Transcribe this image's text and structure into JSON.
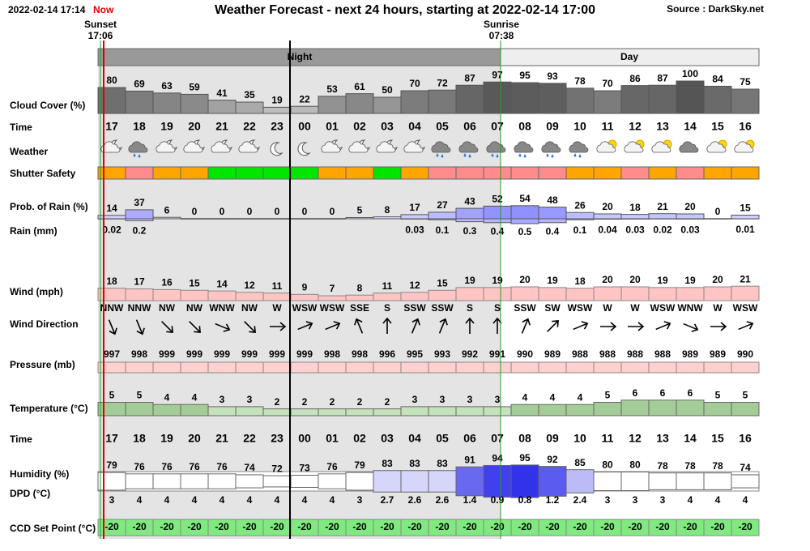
{
  "header": {
    "timestamp": "2022-02-14 17:14",
    "now": "Now",
    "title": "Weather Forecast - next 24 hours, starting at 2022-02-14 17:00",
    "source": "Source : DarkSky.net",
    "sunset": {
      "label": "Sunset",
      "time": "17:06"
    },
    "sunrise": {
      "label": "Sunrise",
      "time": "07:38"
    },
    "night": "Night",
    "day": "Day"
  },
  "hours": [
    "17",
    "18",
    "19",
    "20",
    "21",
    "22",
    "23",
    "00",
    "01",
    "02",
    "03",
    "04",
    "05",
    "06",
    "07",
    "08",
    "09",
    "10",
    "11",
    "12",
    "13",
    "14",
    "15",
    "16"
  ],
  "cloud_cover": {
    "label": "Cloud Cover (%)",
    "values": [
      80,
      69,
      63,
      59,
      41,
      35,
      19,
      22,
      53,
      61,
      50,
      70,
      72,
      87,
      97,
      95,
      93,
      78,
      70,
      86,
      87,
      100,
      84,
      75
    ]
  },
  "time": {
    "label": "Time"
  },
  "weather": {
    "label": "Weather"
  },
  "shutter_safety": {
    "label": "Shutter Safety",
    "colors": [
      "#ffa500",
      "#ff8c8c",
      "#ffa500",
      "#ffa500",
      "#00e600",
      "#00e600",
      "#00e600",
      "#00e600",
      "#ffa500",
      "#ffa500",
      "#00e600",
      "#ffa500",
      "#ff8c8c",
      "#ff8c8c",
      "#ff8c8c",
      "#ff8c8c",
      "#ff8c8c",
      "#ffa500",
      "#ffa500",
      "#ff8c8c",
      "#ffa500",
      "#ff8c8c",
      "#ffa500",
      "#ffa500"
    ]
  },
  "rain_probability": {
    "label": "Prob. of Rain (%)",
    "values": [
      14,
      37,
      6,
      0,
      0,
      0,
      0,
      0,
      0,
      5,
      8,
      17,
      27,
      43,
      52,
      54,
      48,
      26,
      20,
      18,
      21,
      20,
      0,
      15
    ]
  },
  "rain": {
    "label": "Rain (mm)",
    "values": [
      0.02,
      0.2,
      null,
      null,
      null,
      null,
      null,
      null,
      null,
      null,
      null,
      0.03,
      0.1,
      0.3,
      0.4,
      0.5,
      0.4,
      0.1,
      0.04,
      0.03,
      0.02,
      0.03,
      null,
      0.01
    ]
  },
  "wind": {
    "label": "Wind (mph)",
    "values": [
      18,
      17,
      16,
      15,
      14,
      12,
      11,
      9,
      7,
      8,
      11,
      12,
      15,
      19,
      19,
      20,
      19,
      18,
      20,
      20,
      19,
      19,
      20,
      21
    ]
  },
  "wind_direction": {
    "label": "Wind Direction",
    "values": [
      "NNW",
      "NNW",
      "NW",
      "NW",
      "WNW",
      "NW",
      "W",
      "WSW",
      "WSW",
      "SSE",
      "S",
      "SSW",
      "SSW",
      "S",
      "S",
      "SSW",
      "SW",
      "WSW",
      "W",
      "W",
      "WSW",
      "WNW",
      "W",
      "WSW"
    ]
  },
  "pressure": {
    "label": "Pressure (mb)",
    "values": [
      997,
      998,
      999,
      999,
      999,
      999,
      999,
      999,
      998,
      998,
      996,
      995,
      993,
      992,
      991,
      990,
      989,
      988,
      988,
      988,
      988,
      989,
      989,
      990
    ]
  },
  "temperature": {
    "label": "Temperature (°C)",
    "values": [
      5,
      5,
      4,
      4,
      3,
      3,
      2,
      2,
      2,
      2,
      2,
      3,
      3,
      3,
      3,
      4,
      4,
      4,
      5,
      6,
      6,
      6,
      5,
      5
    ]
  },
  "time_2": {
    "label": "Time"
  },
  "humidity": {
    "label": "Humidity (%)",
    "values": [
      79,
      76,
      76,
      76,
      76,
      74,
      72,
      73,
      76,
      79,
      83,
      83,
      83,
      91,
      94,
      95,
      92,
      85,
      80,
      80,
      78,
      78,
      78,
      74
    ]
  },
  "dpd": {
    "label": "DPD (°C)",
    "values": [
      3,
      4,
      4,
      4,
      4,
      4,
      4,
      4,
      4,
      3,
      2.7,
      2.6,
      2.6,
      1.4,
      0.9,
      0.8,
      1.2,
      2.4,
      3,
      3,
      3,
      4,
      4,
      4
    ]
  },
  "ccd_set_point": {
    "label": "CCD Set Point (°C)",
    "values": [
      -20,
      -20,
      -20,
      -20,
      -20,
      -20,
      -20,
      -20,
      -20,
      -20,
      -20,
      -20,
      -20,
      -20,
      -20,
      -20,
      -20,
      -20,
      -20,
      -20,
      -20,
      -20,
      -20,
      -20
    ]
  }
}
